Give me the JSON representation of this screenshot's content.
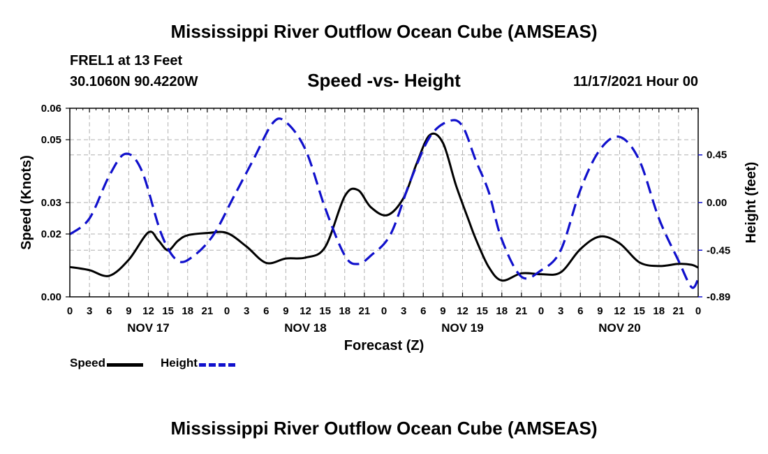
{
  "page": {
    "title": "Mississippi River Outflow Ocean Cube (AMSEAS)",
    "title_repeat": "Mississippi River Outflow Ocean Cube (AMSEAS)",
    "station": "FREL1 at 13 Feet",
    "coords": "30.1060N  90.4220W",
    "datestamp": "11/17/2021 Hour 00"
  },
  "colors": {
    "speed": "#000000",
    "height": "#1010cc",
    "grid": "#b0b0b0"
  },
  "chart_data": {
    "type": "line",
    "title": "Speed -vs- Height",
    "xlabel": "Forecast (Z)",
    "ylabel": "Speed (Knots)",
    "y2label": "Height (feet)",
    "xlim": [
      0,
      96
    ],
    "ylim": [
      0,
      0.06
    ],
    "y2lim": [
      -0.89,
      0.89
    ],
    "x_ticks": [
      0,
      3,
      6,
      9,
      12,
      15,
      18,
      21,
      24,
      27,
      30,
      33,
      36,
      39,
      42,
      45,
      48,
      51,
      54,
      57,
      60,
      63,
      66,
      69,
      72,
      75,
      78,
      81,
      84,
      87,
      90,
      93,
      96
    ],
    "x_tick_labels": [
      "0",
      "3",
      "6",
      "9",
      "12",
      "15",
      "18",
      "21",
      "0",
      "3",
      "6",
      "9",
      "12",
      "15",
      "18",
      "21",
      "0",
      "3",
      "6",
      "9",
      "12",
      "15",
      "18",
      "21",
      "0",
      "3",
      "6",
      "9",
      "12",
      "15",
      "18",
      "21",
      "0"
    ],
    "day_labels": [
      {
        "x": 12,
        "label": "NOV 17"
      },
      {
        "x": 36,
        "label": "NOV 18"
      },
      {
        "x": 60,
        "label": "NOV 19"
      },
      {
        "x": 84,
        "label": "NOV 20"
      }
    ],
    "y_ticks": [
      0,
      0.02,
      0.03,
      0.05,
      0.06
    ],
    "y_tick_labels": [
      "0.00",
      "0.02",
      "0.03",
      "0.05",
      "0.06"
    ],
    "y2_ticks": [
      -0.89,
      -0.45,
      0,
      0.45
    ],
    "y2_tick_labels": [
      "-0.89",
      "-0.45",
      "0.00",
      "0.45"
    ],
    "grid": true,
    "series": [
      {
        "name": "Speed",
        "axis": "left",
        "style": "solid",
        "x": [
          0,
          3,
          6,
          9,
          12,
          13.5,
          15,
          16.5,
          18,
          21,
          24,
          27,
          30,
          33,
          36,
          39,
          42,
          44,
          46,
          48.5,
          51,
          53,
          55,
          57,
          59,
          61,
          62,
          64,
          66,
          69,
          72,
          75,
          78,
          81,
          84,
          87,
          90,
          93,
          95,
          96
        ],
        "y": [
          0.0095,
          0.0085,
          0.0067,
          0.0118,
          0.0205,
          0.018,
          0.0148,
          0.0178,
          0.0196,
          0.0203,
          0.0203,
          0.016,
          0.0108,
          0.0122,
          0.0125,
          0.0158,
          0.032,
          0.034,
          0.0285,
          0.026,
          0.0315,
          0.0425,
          0.0515,
          0.049,
          0.0355,
          0.024,
          0.0185,
          0.0095,
          0.0052,
          0.0075,
          0.0072,
          0.0078,
          0.0152,
          0.0192,
          0.017,
          0.011,
          0.0098,
          0.0105,
          0.0102,
          0.0093
        ]
      },
      {
        "name": "Height",
        "axis": "right",
        "style": "dashed",
        "x": [
          0,
          3,
          6,
          8.5,
          11,
          14,
          16.5,
          19,
          22,
          25,
          28,
          31,
          33,
          36,
          39,
          42,
          44,
          46,
          49,
          52,
          55,
          58,
          60,
          62,
          64,
          66,
          69,
          72,
          75,
          78,
          81,
          84,
          87,
          90,
          93,
          95,
          96
        ],
        "y": [
          -0.3,
          -0.15,
          0.25,
          0.46,
          0.3,
          -0.3,
          -0.55,
          -0.5,
          -0.3,
          0.05,
          0.4,
          0.75,
          0.76,
          0.5,
          -0.05,
          -0.5,
          -0.58,
          -0.5,
          -0.3,
          0.2,
          0.62,
          0.77,
          0.72,
          0.4,
          0.1,
          -0.35,
          -0.7,
          -0.64,
          -0.45,
          0.12,
          0.5,
          0.62,
          0.4,
          -0.15,
          -0.55,
          -0.8,
          -0.72
        ]
      }
    ],
    "legend": [
      "Speed",
      "Height"
    ],
    "legend_position": "bottom-left"
  }
}
